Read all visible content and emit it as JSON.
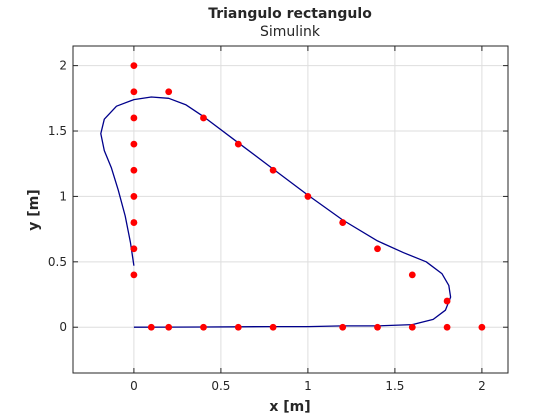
{
  "chart_data": {
    "type": "scatter",
    "title": "Triangulo rectangulo",
    "subtitle": "Simulink",
    "xlabel": "x [m]",
    "ylabel": "y [m]",
    "xlim": [
      -0.35,
      2.15
    ],
    "ylim": [
      -0.35,
      2.15
    ],
    "xticks": [
      0,
      0.5,
      1,
      1.5,
      2
    ],
    "yticks": [
      0,
      0.5,
      1,
      1.5,
      2
    ],
    "xtick_labels": [
      "0",
      "0.5",
      "1",
      "1.5",
      "2"
    ],
    "ytick_labels": [
      "0",
      "0.5",
      "1",
      "1.5",
      "2"
    ],
    "grid": true,
    "colors": {
      "points": "#ff0000",
      "trajectory": "#00008b",
      "grid": "#dedede",
      "axes": "#262626"
    },
    "series": [
      {
        "type": "scatter",
        "x": [
          0,
          0,
          0,
          0,
          0,
          0,
          0,
          0,
          0,
          0.2,
          0.4,
          0.6,
          0.8,
          1.0,
          1.2,
          1.4,
          1.6,
          1.8,
          2.0,
          1.8,
          1.6,
          1.4,
          1.2,
          0.8,
          0.6,
          0.4,
          0.2,
          0.1
        ],
        "y": [
          0.4,
          0.6,
          0.8,
          1.0,
          1.2,
          1.4,
          1.6,
          1.8,
          2.0,
          1.8,
          1.6,
          1.4,
          1.2,
          1.0,
          0.8,
          0.6,
          0.4,
          0.2,
          0,
          0,
          0,
          0,
          0,
          0,
          0,
          0,
          0,
          0
        ]
      },
      {
        "type": "line",
        "x": [
          0,
          -0.02,
          -0.05,
          -0.09,
          -0.13,
          -0.17,
          -0.19,
          -0.17,
          -0.1,
          0,
          0.1,
          0.2,
          0.3,
          0.4,
          0.6,
          0.8,
          1.0,
          1.2,
          1.4,
          1.55,
          1.68,
          1.77,
          1.81,
          1.82,
          1.79,
          1.72,
          1.6,
          1.4,
          1.2,
          1.0,
          0.8,
          0.6,
          0.4,
          0.2,
          0
        ],
        "y": [
          0.47,
          0.65,
          0.85,
          1.05,
          1.22,
          1.35,
          1.48,
          1.59,
          1.69,
          1.74,
          1.76,
          1.75,
          1.7,
          1.61,
          1.41,
          1.21,
          1.01,
          0.82,
          0.66,
          0.57,
          0.5,
          0.41,
          0.32,
          0.23,
          0.13,
          0.06,
          0.02,
          0.01,
          0.01,
          0.005,
          0.005,
          0.003,
          0.002,
          0.001,
          0
        ]
      }
    ]
  }
}
